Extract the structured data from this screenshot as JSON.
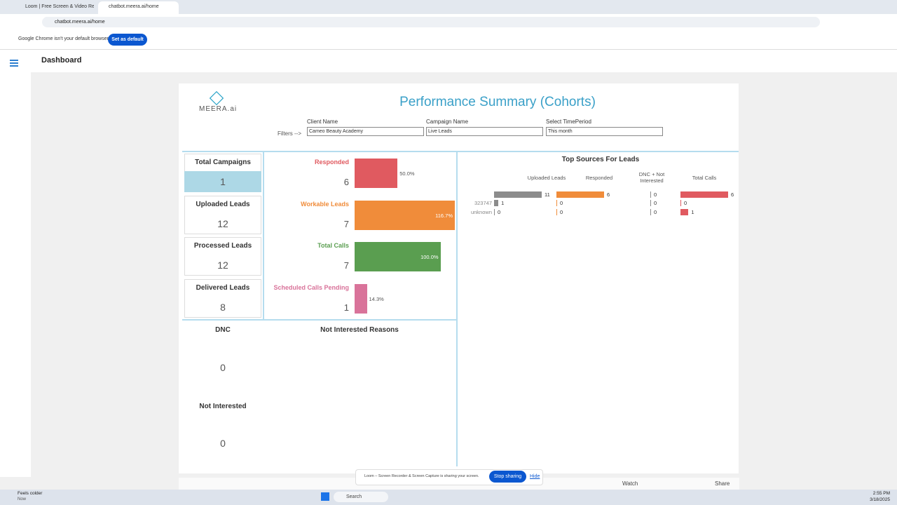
{
  "browser": {
    "tabs": [
      "Loom | Free Screen & Video Re",
      "chatbot.meera.ai/home"
    ],
    "url": "chatbot.meera.ai/home",
    "banner": {
      "message": "Google Chrome isn't your default browser",
      "button": "Set as default"
    }
  },
  "header": {
    "title": "Dashboard"
  },
  "dashboard": {
    "logo": "MEERA.ai",
    "title": "Performance Summary (Cohorts)",
    "filters": {
      "label": "Filters -->",
      "fields": [
        {
          "label": "Client Name",
          "value": "Cameo Beauty Academy"
        },
        {
          "label": "Campaign Name",
          "value": "Live Leads"
        },
        {
          "label": "Select TimePeriod",
          "value": "This month"
        }
      ]
    },
    "cards": [
      {
        "label": "Total Campaigns",
        "value": 1
      },
      {
        "label": "Uploaded Leads",
        "value": 12
      },
      {
        "label": "Processed Leads",
        "value": 12
      },
      {
        "label": "Delivered Leads",
        "value": 8
      }
    ],
    "metrics": [
      {
        "label": "Responded",
        "value": 6,
        "percent": 50.0,
        "percent_label": "50.0%",
        "color": "#e05a60"
      },
      {
        "label": "Workable Leads",
        "value": 7,
        "percent": 116.7,
        "percent_label": "116.7%",
        "color": "#f08c3a"
      },
      {
        "label": "Total Calls",
        "value": 7,
        "percent": 100.0,
        "percent_label": "100.0%",
        "color": "#5a9e50"
      },
      {
        "label": "Scheduled Calls Pending",
        "value": 1,
        "percent": 14.3,
        "percent_label": "14.3%",
        "color": "#d9739a"
      }
    ],
    "top_sources": {
      "title": "Top Sources For Leads",
      "columns": [
        "Uploaded Leads",
        "Responded",
        "DNC + Not Interested",
        "Total Calls"
      ],
      "colors": [
        "#8c8c8c",
        "#f08c3a",
        "#8c8c8c",
        "#e05a60"
      ],
      "rows": [
        {
          "source": null,
          "values": [
            11,
            6,
            0,
            6
          ]
        },
        {
          "source": "323747",
          "values": [
            1,
            0,
            0,
            0
          ]
        },
        {
          "source": "unknown",
          "values": [
            0,
            0,
            0,
            1
          ]
        }
      ]
    },
    "dnc": {
      "label": "DNC",
      "value": 0
    },
    "not_interested": {
      "label": "Not Interested",
      "value": 0
    },
    "reasons_title": "Not Interested Reasons"
  },
  "toolbar": {
    "watch": "Watch",
    "share": "Share"
  },
  "loom": {
    "message": "Loom – Screen Recorder & Screen Capture is sharing your screen.",
    "stop": "Stop sharing",
    "hide": "Hide"
  },
  "taskbar": {
    "weather": "Feels colder",
    "weather_sub": "Now",
    "search": "Search",
    "time": "2:55 PM",
    "date": "3/18/2025"
  }
}
